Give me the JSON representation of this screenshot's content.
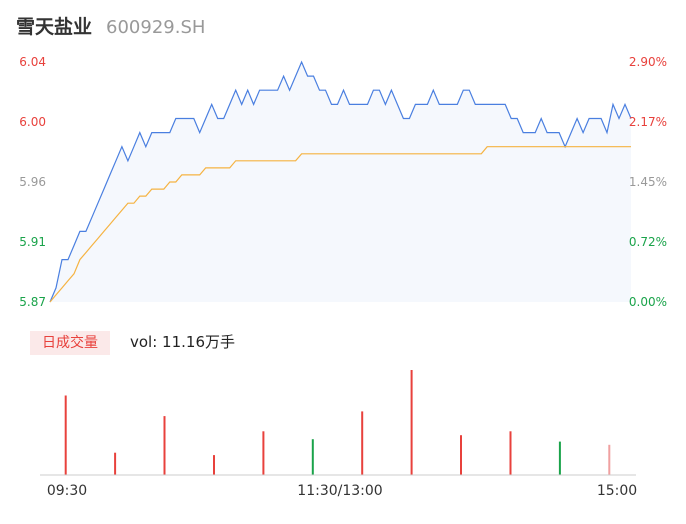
{
  "header": {
    "name": "雪天盐业",
    "code": "600929.SH"
  },
  "volume_panel": {
    "tag": "日成交量",
    "label": "vol: 11.16万手"
  },
  "colors": {
    "price_line": "#4a7fe0",
    "avg_line": "#f5b342",
    "up": "#e8413c",
    "down": "#1aa34a",
    "neutral": "#999999",
    "fill": "#f5f8fd"
  },
  "chart_data": {
    "type": "line",
    "x_ticks": [
      "09:30",
      "11:30/13:00",
      "15:00"
    ],
    "y_left_ticks": [
      "6.04",
      "6.00",
      "5.96",
      "5.91",
      "5.87"
    ],
    "y_right_ticks": [
      "2.90%",
      "2.17%",
      "1.45%",
      "0.72%",
      "0.00%"
    ],
    "ylim": [
      5.87,
      6.04
    ],
    "series": [
      {
        "values": [
          5.87,
          5.88,
          5.9,
          5.9,
          5.91,
          5.92,
          5.92,
          5.93,
          5.94,
          5.95,
          5.96,
          5.97,
          5.98,
          5.97,
          5.98,
          5.99,
          5.98,
          5.99,
          5.99,
          5.99,
          5.99,
          6.0,
          6.0,
          6.0,
          6.0,
          5.99,
          6.0,
          6.01,
          6.0,
          6.0,
          6.01,
          6.02,
          6.01,
          6.02,
          6.01,
          6.02,
          6.02,
          6.02,
          6.02,
          6.03,
          6.02,
          6.03,
          6.04,
          6.03,
          6.03,
          6.02,
          6.02,
          6.01,
          6.01,
          6.02,
          6.01,
          6.01,
          6.01,
          6.01,
          6.02,
          6.02,
          6.01,
          6.02,
          6.01,
          6.0,
          6.0,
          6.01,
          6.01,
          6.01,
          6.02,
          6.01,
          6.01,
          6.01,
          6.01,
          6.02,
          6.02,
          6.01,
          6.01,
          6.01,
          6.01,
          6.01,
          6.01,
          6.0,
          6.0,
          5.99,
          5.99,
          5.99,
          6.0,
          5.99,
          5.99,
          5.99,
          5.98,
          5.99,
          6.0,
          5.99,
          6.0,
          6.0,
          6.0,
          5.99,
          6.01,
          6.0,
          6.01,
          6.0
        ],
        "color": "#4a7fe0"
      },
      {
        "values": [
          5.87,
          5.875,
          5.88,
          5.885,
          5.89,
          5.9,
          5.905,
          5.91,
          5.915,
          5.92,
          5.925,
          5.93,
          5.935,
          5.94,
          5.94,
          5.945,
          5.945,
          5.95,
          5.95,
          5.95,
          5.955,
          5.955,
          5.96,
          5.96,
          5.96,
          5.96,
          5.965,
          5.965,
          5.965,
          5.965,
          5.965,
          5.97,
          5.97,
          5.97,
          5.97,
          5.97,
          5.97,
          5.97,
          5.97,
          5.97,
          5.97,
          5.97,
          5.975,
          5.975,
          5.975,
          5.975,
          5.975,
          5.975,
          5.975,
          5.975,
          5.975,
          5.975,
          5.975,
          5.975,
          5.975,
          5.975,
          5.975,
          5.975,
          5.975,
          5.975,
          5.975,
          5.975,
          5.975,
          5.975,
          5.975,
          5.975,
          5.975,
          5.975,
          5.975,
          5.975,
          5.975,
          5.975,
          5.975,
          5.98,
          5.98,
          5.98,
          5.98,
          5.98,
          5.98,
          5.98,
          5.98,
          5.98,
          5.98,
          5.98,
          5.98,
          5.98,
          5.98,
          5.98,
          5.98,
          5.98,
          5.98,
          5.98,
          5.98,
          5.98,
          5.98,
          5.98,
          5.98,
          5.98
        ],
        "color": "#f5b342"
      }
    ],
    "volume": {
      "values": [
        100,
        28,
        74,
        25,
        55,
        45,
        80,
        132,
        50,
        55,
        42,
        38
      ],
      "dirs": [
        "up",
        "up",
        "up",
        "up",
        "up",
        "down",
        "up",
        "up",
        "up",
        "up",
        "down",
        "neutral"
      ]
    }
  }
}
